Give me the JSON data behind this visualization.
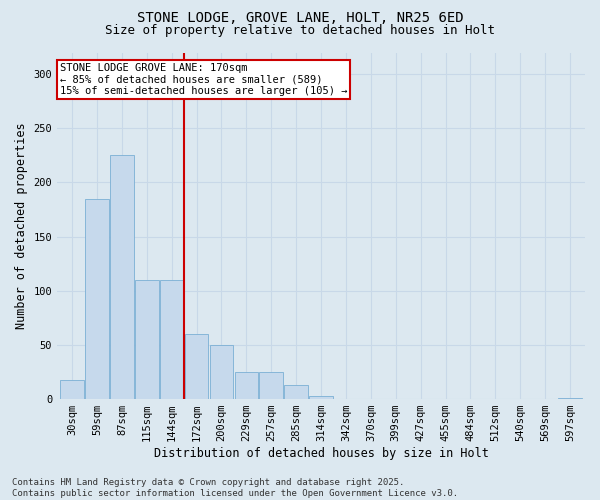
{
  "title_line1": "STONE LODGE, GROVE LANE, HOLT, NR25 6ED",
  "title_line2": "Size of property relative to detached houses in Holt",
  "xlabel": "Distribution of detached houses by size in Holt",
  "ylabel": "Number of detached properties",
  "categories": [
    "30sqm",
    "59sqm",
    "87sqm",
    "115sqm",
    "144sqm",
    "172sqm",
    "200sqm",
    "229sqm",
    "257sqm",
    "285sqm",
    "314sqm",
    "342sqm",
    "370sqm",
    "399sqm",
    "427sqm",
    "455sqm",
    "484sqm",
    "512sqm",
    "540sqm",
    "569sqm",
    "597sqm"
  ],
  "values": [
    18,
    185,
    225,
    110,
    110,
    60,
    50,
    25,
    25,
    13,
    3,
    0,
    0,
    0,
    0,
    0,
    0,
    0,
    0,
    0,
    1
  ],
  "bar_color": "#c6d9ec",
  "bar_edge_color": "#7bafd4",
  "vline_index": 5,
  "vline_color": "#cc0000",
  "annotation_text": "STONE LODGE GROVE LANE: 170sqm\n← 85% of detached houses are smaller (589)\n15% of semi-detached houses are larger (105) →",
  "annotation_box_facecolor": "#ffffff",
  "annotation_box_edgecolor": "#cc0000",
  "ylim": [
    0,
    320
  ],
  "yticks": [
    0,
    50,
    100,
    150,
    200,
    250,
    300
  ],
  "grid_color": "#c8d8e8",
  "plot_bg_color": "#dce8f0",
  "fig_bg_color": "#dce8f0",
  "title_fontsize": 10,
  "subtitle_fontsize": 9,
  "axis_label_fontsize": 8.5,
  "tick_fontsize": 7.5,
  "annotation_fontsize": 7.5,
  "footer_fontsize": 6.5,
  "footer_text": "Contains HM Land Registry data © Crown copyright and database right 2025.\nContains public sector information licensed under the Open Government Licence v3.0."
}
